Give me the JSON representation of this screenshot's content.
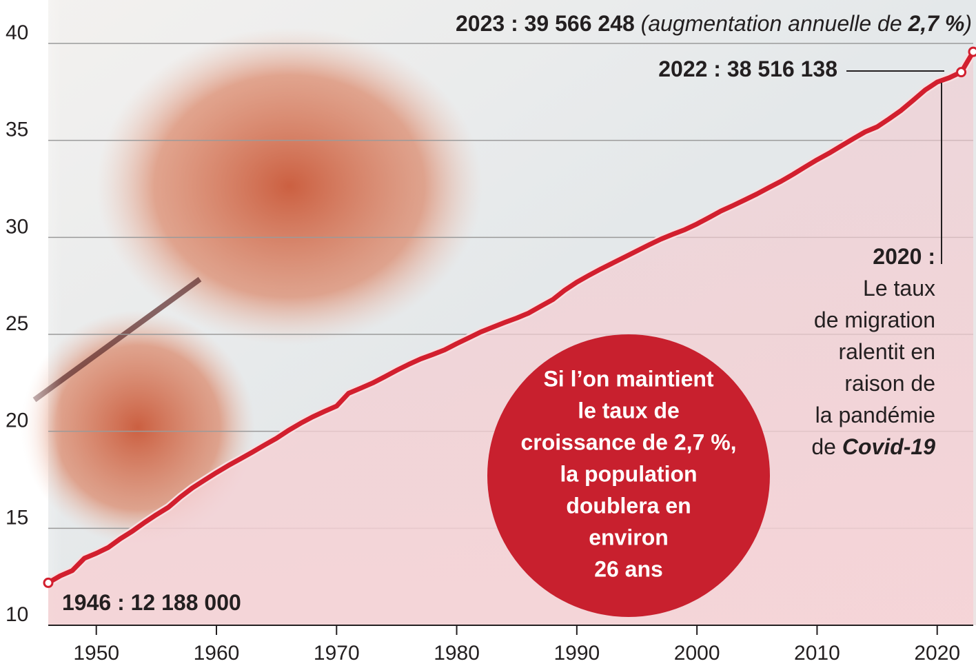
{
  "chart_data": {
    "type": "line",
    "x": [
      1946,
      1947,
      1948,
      1949,
      1950,
      1951,
      1952,
      1953,
      1954,
      1955,
      1956,
      1957,
      1958,
      1959,
      1960,
      1961,
      1962,
      1963,
      1964,
      1965,
      1966,
      1967,
      1968,
      1969,
      1970,
      1971,
      1972,
      1973,
      1974,
      1975,
      1976,
      1977,
      1978,
      1979,
      1980,
      1981,
      1982,
      1983,
      1984,
      1985,
      1986,
      1987,
      1988,
      1989,
      1990,
      1991,
      1992,
      1993,
      1994,
      1995,
      1996,
      1997,
      1998,
      1999,
      2000,
      2001,
      2002,
      2003,
      2004,
      2005,
      2006,
      2007,
      2008,
      2009,
      2010,
      2011,
      2012,
      2013,
      2014,
      2015,
      2016,
      2017,
      2018,
      2019,
      2020,
      2021,
      2022,
      2023
    ],
    "values": [
      12.19,
      12.55,
      12.82,
      13.45,
      13.71,
      14.01,
      14.46,
      14.85,
      15.29,
      15.7,
      16.08,
      16.61,
      17.08,
      17.48,
      17.87,
      18.24,
      18.58,
      18.93,
      19.29,
      19.64,
      20.05,
      20.41,
      20.74,
      21.03,
      21.3,
      21.96,
      22.22,
      22.49,
      22.81,
      23.14,
      23.45,
      23.73,
      23.96,
      24.2,
      24.52,
      24.82,
      25.12,
      25.37,
      25.61,
      25.84,
      26.1,
      26.45,
      26.79,
      27.28,
      27.69,
      28.04,
      28.37,
      28.68,
      28.99,
      29.3,
      29.61,
      29.91,
      30.16,
      30.4,
      30.69,
      31.02,
      31.36,
      31.64,
      31.94,
      32.24,
      32.57,
      32.89,
      33.25,
      33.63,
      34.0,
      34.34,
      34.71,
      35.08,
      35.44,
      35.7,
      36.11,
      36.55,
      37.07,
      37.6,
      38.01,
      38.23,
      38.52,
      39.57
    ],
    "color": "#d21f2e",
    "xlim": [
      1946,
      2023
    ],
    "xticks": [
      1950,
      1960,
      1970,
      1980,
      1990,
      2000,
      2010,
      2020
    ],
    "ylim": [
      10,
      40
    ],
    "yticks": [
      10,
      15,
      20,
      25,
      30,
      35,
      40
    ],
    "grid": true,
    "markers": [
      1946,
      2022,
      2023
    ],
    "annotations": [
      {
        "lines": [
          [
            {
              "text": "2023 : 39 566 248",
              "style": "bold"
            },
            {
              "text": " (augmentation annuelle de ",
              "style": "italic"
            },
            {
              "text": "2,7 %",
              "style": "bolditalic"
            },
            {
              "text": ")",
              "style": "italic"
            }
          ]
        ]
      },
      {
        "lines": [
          [
            {
              "text": "2022 : 38 516 138",
              "style": "bold"
            }
          ]
        ]
      },
      {
        "lines": [
          [
            {
              "text": "2020 :",
              "style": "bold"
            }
          ],
          [
            {
              "text": "Le taux",
              "style": "normal"
            }
          ],
          [
            {
              "text": "de migration",
              "style": "normal"
            }
          ],
          [
            {
              "text": "ralentit en",
              "style": "normal"
            }
          ],
          [
            {
              "text": "raison de",
              "style": "normal"
            }
          ],
          [
            {
              "text": "la pandémie",
              "style": "normal"
            }
          ],
          [
            {
              "text": "de ",
              "style": "normal"
            },
            {
              "text": "Covid-19",
              "style": "bolditalic"
            }
          ]
        ]
      },
      {
        "lines": [
          [
            {
              "text": "1946 : 12 188 000",
              "style": "bold"
            }
          ]
        ]
      }
    ],
    "callout": {
      "color": "#c8202e",
      "lines": [
        "Si l’on maintient",
        "le taux de",
        "croissance de 2,7 %,",
        "la population",
        "doublera en",
        "environ",
        "26 ans"
      ]
    }
  }
}
